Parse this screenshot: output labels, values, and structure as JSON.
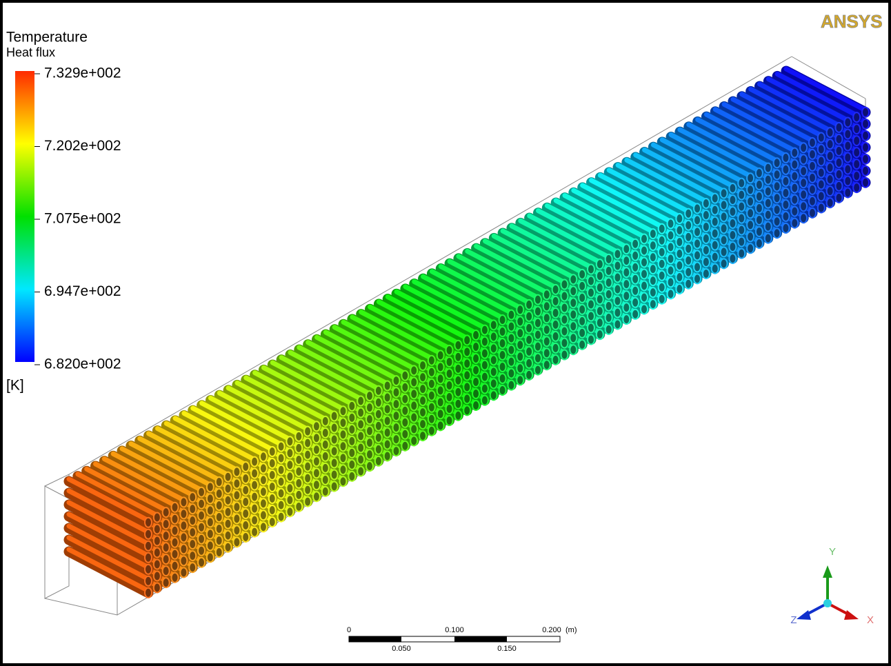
{
  "legend": {
    "title": "Temperature",
    "subtitle": "Heat flux",
    "labels": [
      "7.329e+002",
      "7.202e+002",
      "7.075e+002",
      "6.947e+002",
      "6.820e+002"
    ],
    "unit": "[K]"
  },
  "logo": "ANSYS",
  "scale_bar": {
    "labels_top": [
      "0",
      "0.100",
      "0.200"
    ],
    "unit": "(m)",
    "labels_bottom": [
      "0.050",
      "0.150"
    ]
  },
  "axes": {
    "x": "X",
    "y": "Y",
    "z": "Z"
  }
}
